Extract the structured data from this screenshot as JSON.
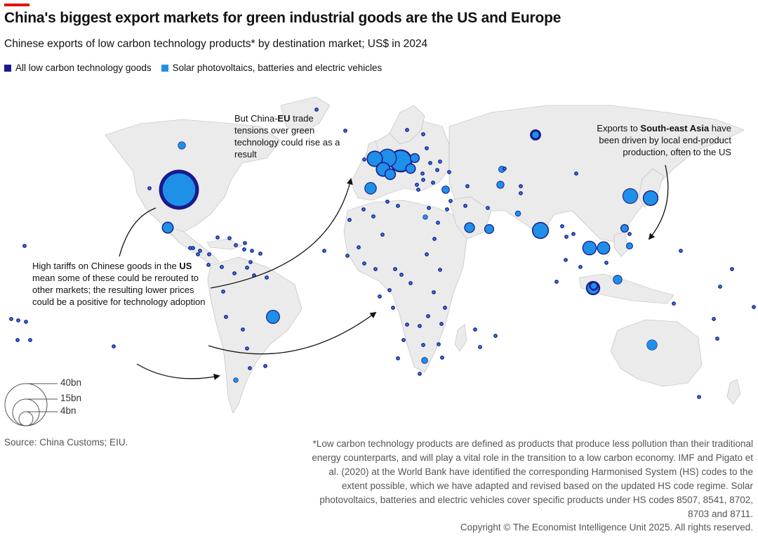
{
  "header": {
    "title": "China's biggest export markets for green industrial goods are the US and Europe",
    "subtitle": "Chinese exports of low carbon technology products* by destination market; US$ in 2024"
  },
  "legend": {
    "items": [
      {
        "label": "All low carbon technology goods",
        "color": "#1a1a8c"
      },
      {
        "label": "Solar photovoltaics, batteries and electric vehicles",
        "color": "#1e90e8"
      }
    ]
  },
  "size_legend": {
    "labels": [
      "40bn",
      "15bn",
      "4bn"
    ],
    "values_bn": [
      40,
      15,
      4
    ]
  },
  "annotations": {
    "eu": {
      "pre": "But China-",
      "bold": "EU",
      "post": " trade tensions over green technology could rise as a result"
    },
    "sea": {
      "pre": "Exports to ",
      "bold": "South-east Asia",
      "post": " have been driven by local end-product production, often to the US"
    },
    "us": {
      "pre": "High tariffs on Chinese goods in the ",
      "bold": "US",
      "post": " mean some of these could be rerouted to other markets; the resulting lower prices could be a positive for technology adoption"
    }
  },
  "footer": {
    "source": "Source: China Customs; EIU.",
    "footnote": "*Low carbon technology products are defined as products that produce less pollution than their traditional energy counterparts, and will play a vital role in the transition to a low carbon economy. IMF and Pigato et al. (2020) at the World Bank have identified the corresponding Harmonised System (HS) codes to the extent possible, which we have adapted and revised based on the updated HS code regime. Solar photovoltaics, batteries and electric vehicles cover specific products under HS codes 8507, 8541, 8702, 8703 and 8711.",
    "copyright": "Copyright © The Economist Intelligence Unit 2025. All rights reserved."
  },
  "colors": {
    "all_goods": "#1a1a8c",
    "solar_ev": "#1e90e8",
    "land": "#ebebeb",
    "border": "#b9b9b9"
  },
  "chart_data": {
    "type": "proportional-symbol-map",
    "title": "China's biggest export markets for green industrial goods are the US and Europe",
    "unit": "US$ bn, 2024",
    "markets": [
      {
        "name": "United States",
        "all": 36,
        "sev": 24
      },
      {
        "name": "Canada",
        "all": 1.4,
        "sev": 1.1
      },
      {
        "name": "Mexico",
        "all": 3.2,
        "sev": 2.2
      },
      {
        "name": "Brazil",
        "all": 4.4,
        "sev": 3.4
      },
      {
        "name": "Chile",
        "all": 0.6,
        "sev": 0.4
      },
      {
        "name": "Germany",
        "all": 12,
        "sev": 9
      },
      {
        "name": "Netherlands",
        "all": 8,
        "sev": 6.5
      },
      {
        "name": "United Kingdom",
        "all": 6,
        "sev": 4.5
      },
      {
        "name": "Belgium",
        "all": 5,
        "sev": 3.5
      },
      {
        "name": "France",
        "all": 3,
        "sev": 2
      },
      {
        "name": "Spain",
        "all": 3.4,
        "sev": 2.6
      },
      {
        "name": "Italy",
        "all": 2.5,
        "sev": 1.6
      },
      {
        "name": "Poland",
        "all": 2.2,
        "sev": 1.4
      },
      {
        "name": "Russia",
        "all": 2.8,
        "sev": 1.0
      },
      {
        "name": "Turkey",
        "all": 1.5,
        "sev": 1.0
      },
      {
        "name": "Saudi Arabia",
        "all": 2.6,
        "sev": 1.8
      },
      {
        "name": "UAE",
        "all": 2.2,
        "sev": 1.5
      },
      {
        "name": "Pakistan",
        "all": 1.4,
        "sev": 1.0
      },
      {
        "name": "India",
        "all": 6.5,
        "sev": 5.0
      },
      {
        "name": "South Korea",
        "all": 5.5,
        "sev": 4.5
      },
      {
        "name": "Japan",
        "all": 5.5,
        "sev": 4.2
      },
      {
        "name": "Taiwan",
        "all": 1.6,
        "sev": 1.0
      },
      {
        "name": "Hong Kong",
        "all": 1.1,
        "sev": 0.7
      },
      {
        "name": "Vietnam",
        "all": 4.8,
        "sev": 3.6
      },
      {
        "name": "Thailand",
        "all": 4.0,
        "sev": 3.0
      },
      {
        "name": "Philippines",
        "all": 2.0,
        "sev": 1.5
      },
      {
        "name": "Malaysia",
        "all": 2.0,
        "sev": 0.8
      },
      {
        "name": "Indonesia",
        "all": 4.6,
        "sev": 2.8
      },
      {
        "name": "Australia",
        "all": 2.6,
        "sev": 2.2
      },
      {
        "name": "Egypt",
        "all": 0.6,
        "sev": 0.4
      },
      {
        "name": "South Africa",
        "all": 1.0,
        "sev": 0.7
      },
      {
        "name": "Kazakhstan",
        "all": 1.1,
        "sev": 0.8
      },
      {
        "name": "Uzbekistan",
        "all": 0.8,
        "sev": 0.5
      },
      {
        "name": "Other markets",
        "all": 0.2,
        "sev": 0.1
      }
    ]
  }
}
